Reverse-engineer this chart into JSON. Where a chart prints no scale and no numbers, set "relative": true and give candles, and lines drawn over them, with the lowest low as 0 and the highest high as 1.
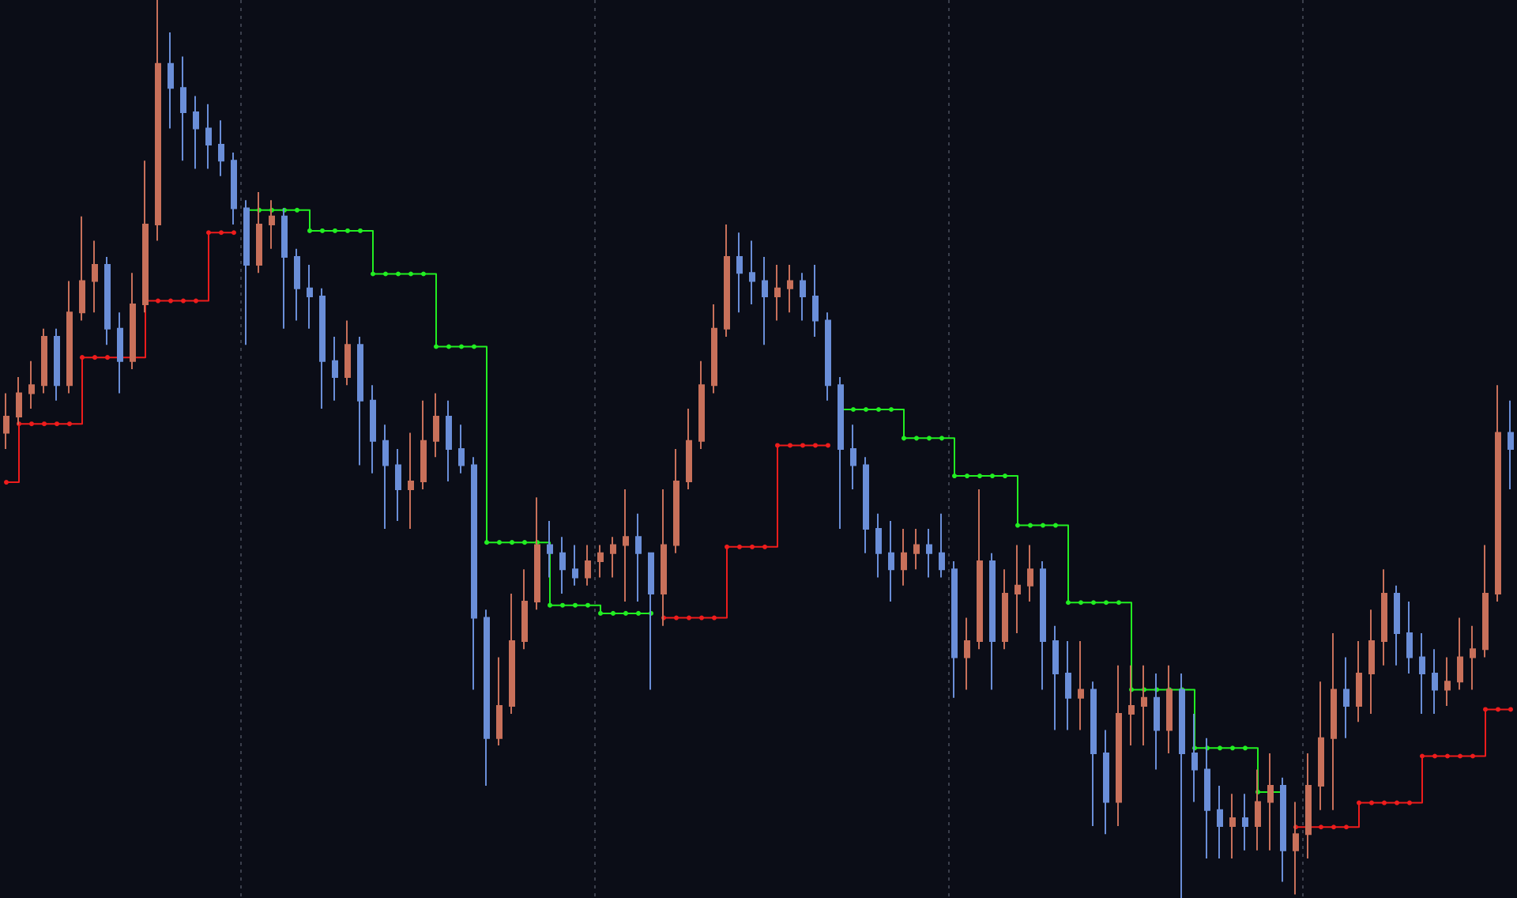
{
  "chart_data": {
    "type": "candlestick",
    "relative": true,
    "tick_labels": false,
    "marker": "circle",
    "categories": [
      null,
      null,
      null,
      null,
      null,
      null,
      null,
      null,
      null,
      null,
      null,
      null,
      null,
      null,
      null,
      null,
      null,
      null,
      null,
      null,
      null,
      null,
      null,
      null,
      null,
      null,
      null,
      null,
      null,
      null,
      null,
      null,
      null,
      null,
      null,
      null,
      null,
      null,
      null,
      null,
      null,
      null,
      null,
      null,
      null,
      null,
      null,
      null,
      null,
      null,
      null,
      null,
      null,
      null,
      null,
      null,
      null,
      null,
      null,
      null,
      null,
      null,
      null,
      null,
      null,
      null,
      null,
      null,
      null,
      null,
      null,
      null,
      null,
      null,
      null,
      null,
      null,
      null,
      null,
      null,
      null,
      null,
      null,
      null,
      null,
      null,
      null,
      null,
      null,
      null,
      null,
      null,
      null,
      null,
      null,
      null,
      null,
      null,
      null,
      null,
      null,
      null,
      null,
      null,
      null,
      null,
      null,
      null,
      null,
      null,
      null,
      null,
      null,
      null,
      null,
      null,
      null,
      null,
      null,
      null
    ],
    "ohlc": [
      [
        0.518,
        0.562,
        0.5,
        0.536
      ],
      [
        0.536,
        0.58,
        0.527,
        0.562
      ],
      [
        0.562,
        0.598,
        0.545,
        0.571
      ],
      [
        0.571,
        0.634,
        0.562,
        0.625
      ],
      [
        0.625,
        0.634,
        0.554,
        0.571
      ],
      [
        0.571,
        0.687,
        0.562,
        0.652
      ],
      [
        0.652,
        0.759,
        0.643,
        0.687
      ],
      [
        0.687,
        0.732,
        0.652,
        0.705
      ],
      [
        0.705,
        0.714,
        0.616,
        0.634
      ],
      [
        0.634,
        0.652,
        0.562,
        0.598
      ],
      [
        0.598,
        0.696,
        0.589,
        0.661
      ],
      [
        0.661,
        0.821,
        0.652,
        0.75
      ],
      [
        0.75,
        1,
        0.732,
        0.929
      ],
      [
        0.929,
        0.964,
        0.857,
        0.902
      ],
      [
        0.902,
        0.937,
        0.821,
        0.875
      ],
      [
        0.875,
        0.893,
        0.812,
        0.857
      ],
      [
        0.857,
        0.884,
        0.812,
        0.839
      ],
      [
        0.839,
        0.866,
        0.804,
        0.821
      ],
      [
        0.821,
        0.83,
        0.75,
        0.768
      ],
      [
        0.768,
        0.777,
        0.616,
        0.705
      ],
      [
        0.705,
        0.786,
        0.696,
        0.75
      ],
      [
        0.75,
        0.777,
        0.723,
        0.759
      ],
      [
        0.759,
        0.768,
        0.634,
        0.714
      ],
      [
        0.714,
        0.723,
        0.643,
        0.679
      ],
      [
        0.679,
        0.705,
        0.634,
        0.67
      ],
      [
        0.67,
        0.679,
        0.545,
        0.598
      ],
      [
        0.598,
        0.625,
        0.554,
        0.58
      ],
      [
        0.58,
        0.643,
        0.571,
        0.616
      ],
      [
        0.616,
        0.625,
        0.482,
        0.554
      ],
      [
        0.554,
        0.571,
        0.473,
        0.509
      ],
      [
        0.509,
        0.527,
        0.411,
        0.482
      ],
      [
        0.482,
        0.5,
        0.42,
        0.455
      ],
      [
        0.455,
        0.518,
        0.411,
        0.464
      ],
      [
        0.464,
        0.554,
        0.455,
        0.509
      ],
      [
        0.509,
        0.562,
        0.491,
        0.536
      ],
      [
        0.536,
        0.554,
        0.464,
        0.5
      ],
      [
        0.5,
        0.527,
        0.473,
        0.482
      ],
      [
        0.482,
        0.491,
        0.232,
        0.312
      ],
      [
        0.312,
        0.321,
        0.125,
        0.178
      ],
      [
        0.178,
        0.268,
        0.17,
        0.214
      ],
      [
        0.214,
        0.339,
        0.205,
        0.286
      ],
      [
        0.286,
        0.366,
        0.277,
        0.33
      ],
      [
        0.33,
        0.446,
        0.321,
        0.393
      ],
      [
        0.393,
        0.42,
        0.357,
        0.384
      ],
      [
        0.384,
        0.402,
        0.339,
        0.366
      ],
      [
        0.366,
        0.393,
        0.348,
        0.357
      ],
      [
        0.357,
        0.393,
        0.348,
        0.375
      ],
      [
        0.375,
        0.393,
        0.357,
        0.384
      ],
      [
        0.384,
        0.402,
        0.357,
        0.393
      ],
      [
        0.393,
        0.455,
        0.33,
        0.402
      ],
      [
        0.402,
        0.428,
        0.33,
        0.384
      ],
      [
        0.384,
        0.384,
        0.232,
        0.339
      ],
      [
        0.339,
        0.455,
        0.303,
        0.393
      ],
      [
        0.393,
        0.5,
        0.384,
        0.464
      ],
      [
        0.464,
        0.545,
        0.455,
        0.509
      ],
      [
        0.509,
        0.598,
        0.5,
        0.571
      ],
      [
        0.571,
        0.661,
        0.562,
        0.634
      ],
      [
        0.634,
        0.75,
        0.625,
        0.714
      ],
      [
        0.714,
        0.741,
        0.652,
        0.696
      ],
      [
        0.696,
        0.732,
        0.661,
        0.687
      ],
      [
        0.687,
        0.714,
        0.616,
        0.67
      ],
      [
        0.67,
        0.705,
        0.643,
        0.679
      ],
      [
        0.679,
        0.705,
        0.652,
        0.687
      ],
      [
        0.687,
        0.696,
        0.643,
        0.67
      ],
      [
        0.67,
        0.705,
        0.625,
        0.643
      ],
      [
        0.643,
        0.652,
        0.554,
        0.571
      ],
      [
        0.571,
        0.58,
        0.411,
        0.5
      ],
      [
        0.5,
        0.527,
        0.455,
        0.482
      ],
      [
        0.482,
        0.491,
        0.384,
        0.411
      ],
      [
        0.411,
        0.428,
        0.357,
        0.384
      ],
      [
        0.384,
        0.42,
        0.33,
        0.366
      ],
      [
        0.366,
        0.411,
        0.348,
        0.384
      ],
      [
        0.384,
        0.411,
        0.366,
        0.393
      ],
      [
        0.393,
        0.411,
        0.357,
        0.384
      ],
      [
        0.384,
        0.428,
        0.357,
        0.366
      ],
      [
        0.366,
        0.375,
        0.223,
        0.268
      ],
      [
        0.268,
        0.312,
        0.232,
        0.286
      ],
      [
        0.286,
        0.455,
        0.277,
        0.375
      ],
      [
        0.375,
        0.384,
        0.232,
        0.286
      ],
      [
        0.286,
        0.366,
        0.277,
        0.339
      ],
      [
        0.339,
        0.393,
        0.295,
        0.348
      ],
      [
        0.348,
        0.393,
        0.33,
        0.366
      ],
      [
        0.366,
        0.375,
        0.232,
        0.286
      ],
      [
        0.286,
        0.303,
        0.187,
        0.25
      ],
      [
        0.25,
        0.286,
        0.187,
        0.223
      ],
      [
        0.223,
        0.286,
        0.187,
        0.232
      ],
      [
        0.232,
        0.241,
        0.08,
        0.161
      ],
      [
        0.161,
        0.187,
        0.071,
        0.107
      ],
      [
        0.107,
        0.259,
        0.08,
        0.205
      ],
      [
        0.205,
        0.259,
        0.17,
        0.214
      ],
      [
        0.214,
        0.259,
        0.17,
        0.223
      ],
      [
        0.223,
        0.25,
        0.143,
        0.187
      ],
      [
        0.187,
        0.259,
        0.161,
        0.232
      ],
      [
        0.232,
        0.25,
        0,
        0.161
      ],
      [
        0.161,
        0.205,
        0.107,
        0.143
      ],
      [
        0.143,
        0.178,
        0.044,
        0.098
      ],
      [
        0.098,
        0.125,
        0.044,
        0.08
      ],
      [
        0.08,
        0.116,
        0.044,
        0.089
      ],
      [
        0.089,
        0.116,
        0.053,
        0.08
      ],
      [
        0.08,
        0.143,
        0.053,
        0.107
      ],
      [
        0.107,
        0.161,
        0.053,
        0.125
      ],
      [
        0.125,
        0.134,
        0.018,
        0.053
      ],
      [
        0.053,
        0.107,
        0.004,
        0.071
      ],
      [
        0.071,
        0.161,
        0.044,
        0.125
      ],
      [
        0.125,
        0.241,
        0.098,
        0.178
      ],
      [
        0.178,
        0.295,
        0.098,
        0.232
      ],
      [
        0.232,
        0.268,
        0.178,
        0.214
      ],
      [
        0.214,
        0.286,
        0.196,
        0.25
      ],
      [
        0.25,
        0.321,
        0.205,
        0.286
      ],
      [
        0.286,
        0.366,
        0.259,
        0.339
      ],
      [
        0.339,
        0.348,
        0.259,
        0.295
      ],
      [
        0.295,
        0.33,
        0.25,
        0.268
      ],
      [
        0.268,
        0.295,
        0.205,
        0.25
      ],
      [
        0.25,
        0.277,
        0.205,
        0.232
      ],
      [
        0.232,
        0.268,
        0.214,
        0.241
      ],
      [
        0.241,
        0.312,
        0.232,
        0.268
      ],
      [
        0.268,
        0.303,
        0.232,
        0.277
      ],
      [
        0.277,
        0.393,
        0.268,
        0.339
      ],
      [
        0.339,
        0.571,
        0.33,
        0.518
      ],
      [
        0.518,
        0.554,
        0.455,
        0.5
      ]
    ],
    "colors": [
      "#c8705a",
      "#c8705a",
      "#c8705a",
      "#c8705a",
      "#6a8ed8",
      "#c8705a",
      "#c8705a",
      "#c8705a",
      "#6a8ed8",
      "#6a8ed8",
      "#c8705a",
      "#c8705a",
      "#c8705a",
      "#6a8ed8",
      "#6a8ed8",
      "#6a8ed8",
      "#6a8ed8",
      "#6a8ed8",
      "#6a8ed8",
      "#6a8ed8",
      "#c8705a",
      "#c8705a",
      "#6a8ed8",
      "#6a8ed8",
      "#6a8ed8",
      "#6a8ed8",
      "#6a8ed8",
      "#c8705a",
      "#6a8ed8",
      "#6a8ed8",
      "#6a8ed8",
      "#6a8ed8",
      "#c8705a",
      "#c8705a",
      "#c8705a",
      "#6a8ed8",
      "#6a8ed8",
      "#6a8ed8",
      "#6a8ed8",
      "#c8705a",
      "#c8705a",
      "#c8705a",
      "#c8705a",
      "#6a8ed8",
      "#6a8ed8",
      "#6a8ed8",
      "#c8705a",
      "#c8705a",
      "#c8705a",
      "#c8705a",
      "#6a8ed8",
      "#6a8ed8",
      "#c8705a",
      "#c8705a",
      "#c8705a",
      "#c8705a",
      "#c8705a",
      "#c8705a",
      "#6a8ed8",
      "#6a8ed8",
      "#6a8ed8",
      "#c8705a",
      "#c8705a",
      "#6a8ed8",
      "#6a8ed8",
      "#6a8ed8",
      "#6a8ed8",
      "#6a8ed8",
      "#6a8ed8",
      "#6a8ed8",
      "#6a8ed8",
      "#c8705a",
      "#c8705a",
      "#6a8ed8",
      "#6a8ed8",
      "#6a8ed8",
      "#c8705a",
      "#c8705a",
      "#6a8ed8",
      "#c8705a",
      "#c8705a",
      "#c8705a",
      "#6a8ed8",
      "#6a8ed8",
      "#6a8ed8",
      "#c8705a",
      "#6a8ed8",
      "#6a8ed8",
      "#c8705a",
      "#c8705a",
      "#c8705a",
      "#6a8ed8",
      "#c8705a",
      "#6a8ed8",
      "#6a8ed8",
      "#6a8ed8",
      "#6a8ed8",
      "#c8705a",
      "#6a8ed8",
      "#c8705a",
      "#c8705a",
      "#6a8ed8",
      "#c8705a",
      "#c8705a",
      "#c8705a",
      "#c8705a",
      "#6a8ed8",
      "#c8705a",
      "#c8705a",
      "#c8705a",
      "#6a8ed8",
      "#6a8ed8",
      "#6a8ed8",
      "#6a8ed8",
      "#c8705a",
      "#c8705a",
      "#c8705a",
      "#c8705a",
      "#c8705a",
      "#6a8ed8"
    ],
    "series": [
      {
        "type": "step",
        "color": "#ee1c1c",
        "values": [
          0.463,
          0.528,
          0.528,
          0.528,
          0.528,
          0.528,
          0.602,
          0.602,
          0.602,
          0.602,
          0.602,
          0.665,
          0.665,
          0.665,
          0.665,
          0.665,
          0.741,
          0.741,
          0.741,
          null,
          null,
          null,
          null,
          null,
          null,
          null,
          null,
          null,
          null,
          null,
          null,
          null,
          null,
          null,
          null,
          null,
          null,
          null,
          null,
          null,
          null,
          null,
          null,
          null,
          null,
          null,
          null,
          null,
          null,
          null,
          null,
          null,
          0.312,
          0.312,
          0.312,
          0.312,
          0.312,
          0.391,
          0.391,
          0.391,
          0.391,
          0.504,
          0.504,
          0.504,
          0.504,
          0.504,
          null,
          null,
          null,
          null,
          null,
          null,
          null,
          null,
          null,
          null,
          null,
          null,
          null,
          null,
          null,
          null,
          null,
          null,
          null,
          null,
          null,
          null,
          null,
          null,
          null,
          null,
          null,
          null,
          null,
          null,
          null,
          null,
          null,
          null,
          null,
          null,
          0.079,
          0.079,
          0.079,
          0.079,
          0.079,
          0.106,
          0.106,
          0.106,
          0.106,
          0.106,
          0.158,
          0.158,
          0.158,
          0.158,
          0.158,
          0.21,
          0.21,
          0.21
        ]
      },
      {
        "type": "step",
        "color": "#22ee22",
        "values": [
          null,
          null,
          null,
          null,
          null,
          null,
          null,
          null,
          null,
          null,
          null,
          null,
          null,
          null,
          null,
          null,
          null,
          null,
          null,
          0.766,
          0.766,
          0.766,
          0.766,
          0.766,
          0.743,
          0.743,
          0.743,
          0.743,
          0.743,
          0.695,
          0.695,
          0.695,
          0.695,
          0.695,
          0.614,
          0.614,
          0.614,
          0.614,
          0.396,
          0.396,
          0.396,
          0.396,
          0.396,
          0.326,
          0.326,
          0.326,
          0.326,
          0.317,
          0.317,
          0.317,
          0.317,
          0.317,
          null,
          null,
          null,
          null,
          null,
          null,
          null,
          null,
          null,
          null,
          null,
          null,
          null,
          null,
          0.544,
          0.544,
          0.544,
          0.544,
          0.544,
          0.512,
          0.512,
          0.512,
          0.512,
          0.47,
          0.47,
          0.47,
          0.47,
          0.47,
          0.415,
          0.415,
          0.415,
          0.415,
          0.329,
          0.329,
          0.329,
          0.329,
          0.329,
          0.232,
          0.232,
          0.232,
          0.232,
          0.232,
          0.167,
          0.167,
          0.167,
          0.167,
          0.167,
          0.118,
          0.118,
          0.118,
          null,
          null,
          null,
          null,
          null,
          null,
          null,
          null,
          null,
          null,
          null,
          null,
          null,
          null,
          null,
          null,
          null,
          null
        ]
      }
    ]
  }
}
